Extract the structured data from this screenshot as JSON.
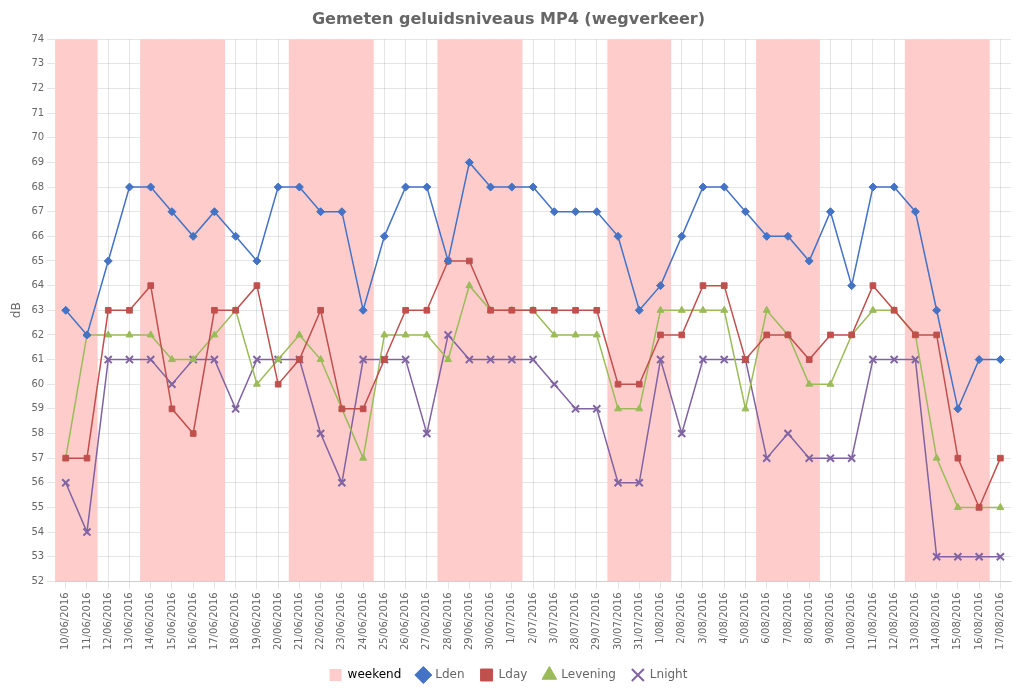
{
  "chart_data": {
    "type": "line",
    "title": "Gemeten geluidsniveaus MP4 (wegverkeer)",
    "ylabel": "dB",
    "ylim": [
      52,
      74
    ],
    "yticks": [
      52,
      53,
      54,
      55,
      56,
      57,
      58,
      59,
      60,
      61,
      62,
      63,
      64,
      65,
      66,
      67,
      68,
      69,
      70,
      71,
      72,
      73,
      74
    ],
    "grid": true,
    "legend": "bottom",
    "categories": [
      "10/06/2016",
      "11/06/2016",
      "12/06/2016",
      "13/06/2016",
      "14/06/2016",
      "15/06/2016",
      "16/06/2016",
      "17/06/2016",
      "18/06/2016",
      "19/06/2016",
      "20/06/2016",
      "21/06/2016",
      "22/06/2016",
      "23/06/2016",
      "24/06/2016",
      "25/06/2016",
      "26/06/2016",
      "27/06/2016",
      "28/06/2016",
      "29/06/2016",
      "30/06/2016",
      "1/07/2016",
      "2/07/2016",
      "3/07/2016",
      "28/07/2016",
      "29/07/2016",
      "30/07/2016",
      "31/07/2016",
      "1/08/2016",
      "2/08/2016",
      "3/08/2016",
      "4/08/2016",
      "5/08/2016",
      "6/08/2016",
      "7/08/2016",
      "8/08/2016",
      "9/08/2016",
      "10/08/2016",
      "11/08/2016",
      "12/08/2016",
      "13/08/2016",
      "14/08/2016",
      "15/08/2016",
      "16/08/2016",
      "17/08/2016"
    ],
    "shaded_ranges": {
      "name": "weekend",
      "color": "#FFCCCC",
      "ranges": [
        [
          "10/06/2016",
          "11/06/2016"
        ],
        [
          "14/06/2016",
          "17/06/2016"
        ],
        [
          "21/06/2016",
          "24/06/2016"
        ],
        [
          "28/06/2016",
          "1/07/2016"
        ],
        [
          "30/07/2016",
          "1/08/2016"
        ],
        [
          "6/08/2016",
          "8/08/2016"
        ],
        [
          "13/08/2016",
          "16/08/2016"
        ]
      ]
    },
    "series": [
      {
        "name": "Lden",
        "color": "#4472C4",
        "marker": "diamond",
        "values": [
          63,
          62,
          65,
          68,
          68,
          67,
          66,
          67,
          66,
          65,
          68,
          68,
          67,
          67,
          63,
          66,
          68,
          68,
          65,
          69,
          68,
          68,
          68,
          67,
          67,
          67,
          66,
          63,
          64,
          66,
          68,
          68,
          67,
          66,
          66,
          65,
          67,
          64,
          68,
          68,
          67,
          63,
          59,
          61,
          61
        ]
      },
      {
        "name": "Lday",
        "color": "#C0504D",
        "marker": "square",
        "values": [
          57,
          57,
          63,
          63,
          64,
          59,
          58,
          63,
          63,
          64,
          60,
          61,
          63,
          59,
          59,
          61,
          63,
          63,
          65,
          65,
          63,
          63,
          63,
          63,
          63,
          63,
          60,
          60,
          62,
          62,
          64,
          64,
          61,
          62,
          62,
          61,
          62,
          62,
          64,
          63,
          62,
          62,
          57,
          55,
          57
        ]
      },
      {
        "name": "Levening",
        "color": "#9BBB59",
        "marker": "triangle",
        "values": [
          57,
          62,
          62,
          62,
          62,
          61,
          61,
          62,
          63,
          60,
          61,
          62,
          61,
          59,
          57,
          62,
          62,
          62,
          61,
          64,
          63,
          63,
          63,
          62,
          62,
          62,
          59,
          59,
          63,
          63,
          63,
          63,
          59,
          63,
          62,
          60,
          60,
          62,
          63,
          63,
          62,
          57,
          55,
          55,
          55
        ]
      },
      {
        "name": "Lnight",
        "color": "#8064A2",
        "marker": "x",
        "values": [
          56,
          54,
          61,
          61,
          61,
          60,
          61,
          61,
          59,
          61,
          61,
          61,
          58,
          56,
          61,
          61,
          61,
          58,
          62,
          61,
          61,
          61,
          61,
          60,
          59,
          59,
          56,
          56,
          61,
          58,
          61,
          61,
          61,
          57,
          58,
          57,
          57,
          57,
          61,
          61,
          61,
          53,
          53,
          53,
          53
        ]
      }
    ]
  }
}
